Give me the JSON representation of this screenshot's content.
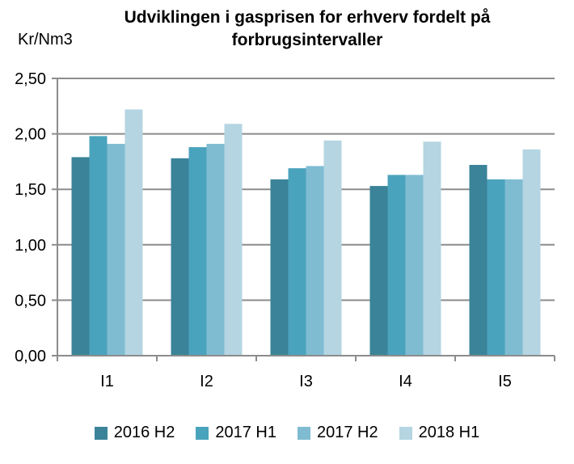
{
  "chart_data": {
    "type": "bar",
    "title": "Udviklingen i gasprisen for erhverv fordelt på forbrugsintervaller",
    "title_lines": [
      "Udviklingen i gasprisen for erhverv fordelt på",
      "forbrugsintervaller"
    ],
    "xlabel": "",
    "ylabel": "Kr/Nm3",
    "ylim": [
      0,
      2.5
    ],
    "yticks": [
      0,
      0.5,
      1.0,
      1.5,
      2.0,
      2.5
    ],
    "ytick_labels": [
      "0,00",
      "0,50",
      "1,00",
      "1,50",
      "2,00",
      "2,50"
    ],
    "grid": true,
    "legend_position": "bottom",
    "categories": [
      "I1",
      "I2",
      "I3",
      "I4",
      "I5"
    ],
    "series": [
      {
        "name": "2016 H2",
        "color": "#3a8399",
        "values": [
          1.79,
          1.78,
          1.59,
          1.53,
          1.72
        ]
      },
      {
        "name": "2017 H1",
        "color": "#4aa3bd",
        "values": [
          1.98,
          1.88,
          1.69,
          1.63,
          1.59
        ]
      },
      {
        "name": "2017 H2",
        "color": "#7fbcd2",
        "values": [
          1.91,
          1.91,
          1.71,
          1.63,
          1.59
        ]
      },
      {
        "name": "2018 H1",
        "color": "#b4d5e1",
        "values": [
          2.22,
          2.09,
          1.94,
          1.93,
          1.86
        ]
      }
    ]
  }
}
